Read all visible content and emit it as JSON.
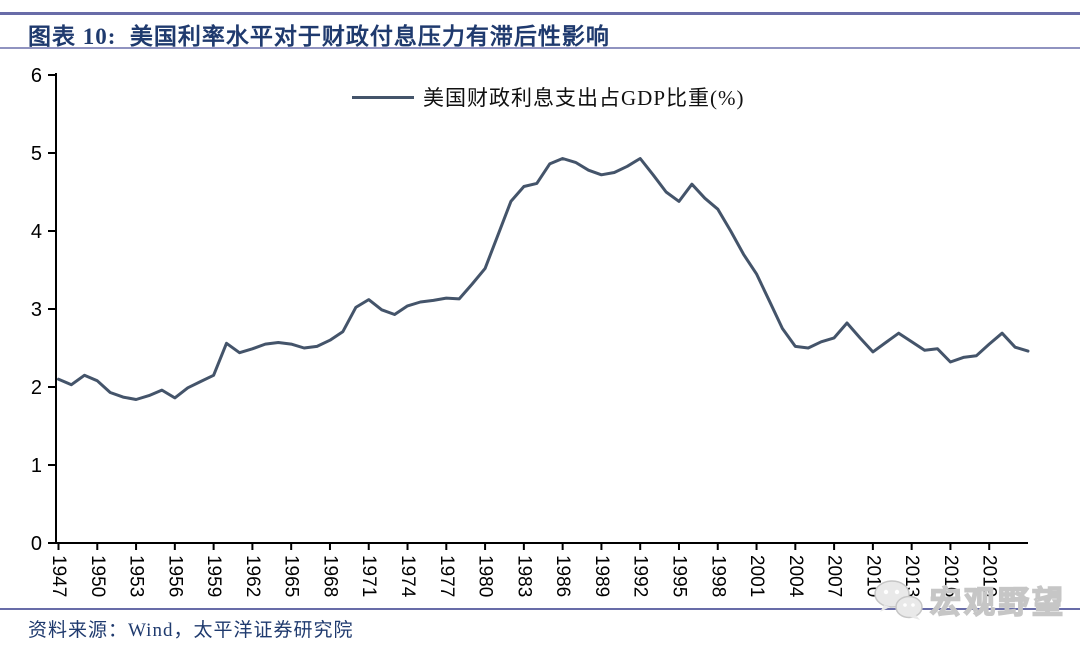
{
  "header": {
    "title": "图表 10:  美国利率水平对于财政付息压力有滞后性影响"
  },
  "legend": {
    "label": "美国财政利息支出占GDP比重(%)"
  },
  "footer": {
    "source": "资料来源：Wind，太平洋证券研究院"
  },
  "watermark": {
    "icon": "wechat-chat-bubbles-icon",
    "text": "宏观野望"
  },
  "colors": {
    "line": "#44546a",
    "title_text": "#1f3a6e",
    "rule": "#686ca8",
    "axis": "#000000",
    "tick_label": "#000000",
    "watermark": "#c6c6c6"
  },
  "chart_data": {
    "type": "line",
    "title": "美国财政利息支出占GDP比重(%)",
    "series_name": "美国财政利息支出占GDP比重(%)",
    "xlabel": "",
    "ylabel": "",
    "ylim": [
      0,
      6
    ],
    "y_ticks": [
      0,
      1,
      2,
      3,
      4,
      5,
      6
    ],
    "grid": false,
    "legend_position": "top-center",
    "x_tick_labels": [
      "1947",
      "1950",
      "1953",
      "1956",
      "1959",
      "1962",
      "1965",
      "1968",
      "1971",
      "1974",
      "1977",
      "1980",
      "1983",
      "1986",
      "1989",
      "1992",
      "1995",
      "1998",
      "2001",
      "2004",
      "2007",
      "2010",
      "2013",
      "2016",
      "2019"
    ],
    "x": [
      1947,
      1948,
      1949,
      1950,
      1951,
      1952,
      1953,
      1954,
      1955,
      1956,
      1957,
      1958,
      1959,
      1960,
      1961,
      1962,
      1963,
      1964,
      1965,
      1966,
      1967,
      1968,
      1969,
      1970,
      1971,
      1972,
      1973,
      1974,
      1975,
      1976,
      1977,
      1978,
      1979,
      1980,
      1981,
      1982,
      1983,
      1984,
      1985,
      1986,
      1987,
      1988,
      1989,
      1990,
      1991,
      1992,
      1993,
      1994,
      1995,
      1996,
      1997,
      1998,
      1999,
      2000,
      2001,
      2002,
      2003,
      2004,
      2005,
      2006,
      2007,
      2008,
      2009,
      2010,
      2011,
      2012,
      2013,
      2014,
      2015,
      2016,
      2017,
      2018,
      2019,
      2020,
      2021,
      2022
    ],
    "values": [
      2.1,
      2.03,
      2.15,
      2.08,
      1.93,
      1.87,
      1.84,
      1.89,
      1.96,
      1.86,
      1.99,
      2.07,
      2.15,
      2.56,
      2.44,
      2.49,
      2.55,
      2.57,
      2.55,
      2.5,
      2.52,
      2.6,
      2.71,
      3.02,
      3.12,
      2.99,
      2.93,
      3.04,
      3.09,
      3.11,
      3.14,
      3.13,
      3.32,
      3.52,
      3.95,
      4.38,
      4.57,
      4.61,
      4.86,
      4.93,
      4.88,
      4.78,
      4.72,
      4.75,
      4.83,
      4.93,
      4.72,
      4.5,
      4.38,
      4.6,
      4.42,
      4.28,
      4.0,
      3.7,
      3.45,
      3.1,
      2.75,
      2.52,
      2.5,
      2.58,
      2.63,
      2.82,
      2.63,
      2.45,
      2.57,
      2.69,
      2.58,
      2.47,
      2.49,
      2.32,
      2.38,
      2.4,
      2.55,
      2.69,
      2.51,
      2.46
    ]
  }
}
